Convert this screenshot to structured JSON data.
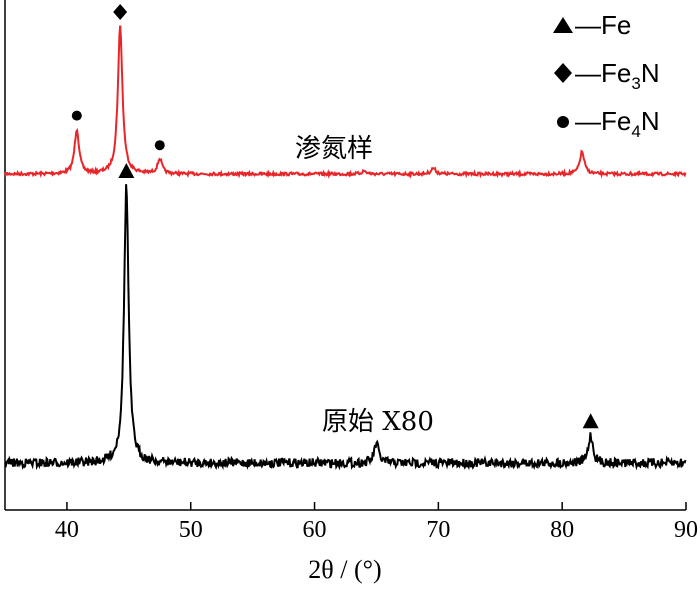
{
  "chart_data": {
    "type": "line",
    "xlabel": "2θ / (°)",
    "xlim": [
      35,
      90
    ],
    "x_ticks": [
      "40",
      "50",
      "60",
      "70",
      "80",
      "90"
    ],
    "grid": false,
    "legend_position": "top-right",
    "series": [
      {
        "name": "渗氮样",
        "color": "#e8262a",
        "peaks": [
          {
            "x": 40.8,
            "height": 0.3,
            "marker": "circle"
          },
          {
            "x": 44.3,
            "height": 1.0,
            "marker": "diamond"
          },
          {
            "x": 47.5,
            "height": 0.1,
            "marker": "circle"
          },
          {
            "x": 64.0,
            "height": 0.02,
            "marker": ""
          },
          {
            "x": 69.6,
            "height": 0.04,
            "marker": ""
          },
          {
            "x": 81.6,
            "height": 0.15,
            "marker": ""
          }
        ]
      },
      {
        "name": "原始 X80",
        "color": "#000000",
        "peaks": [
          {
            "x": 44.8,
            "height": 1.0,
            "marker": "triangle"
          },
          {
            "x": 65.0,
            "height": 0.07,
            "marker": ""
          },
          {
            "x": 82.3,
            "height": 0.1,
            "marker": "triangle"
          }
        ]
      }
    ]
  },
  "legend": [
    {
      "marker": "triangle",
      "line": "—",
      "label": "Fe",
      "sub": "",
      "label_end": ""
    },
    {
      "marker": "diamond",
      "line": "—",
      "label": "Fe",
      "sub": "3",
      "label_end": "N"
    },
    {
      "marker": "circle",
      "line": "—",
      "label": "Fe",
      "sub": "4",
      "label_end": "N"
    }
  ]
}
